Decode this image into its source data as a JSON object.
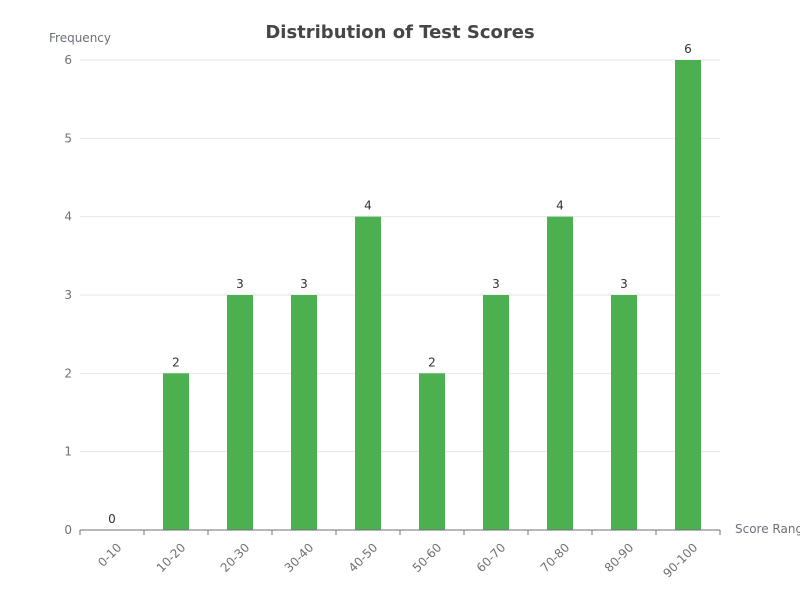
{
  "chart_data": {
    "type": "bar",
    "title": "Distribution of Test Scores",
    "xlabel": "Score Rang",
    "ylabel": "Frequency",
    "categories": [
      "0-10",
      "10-20",
      "20-30",
      "30-40",
      "40-50",
      "50-60",
      "60-70",
      "70-80",
      "80-90",
      "90-100"
    ],
    "values": [
      0,
      2,
      3,
      3,
      4,
      2,
      3,
      4,
      3,
      6
    ],
    "ylim": [
      0,
      6
    ],
    "yticks": [
      0,
      1,
      2,
      3,
      4,
      5,
      6
    ],
    "grid": true,
    "legend": "none",
    "colors": {
      "bar": "#4caf50",
      "grid": "#e0e6f1",
      "axis": "#6e7079",
      "title": "#464646",
      "label": "#333333"
    }
  }
}
